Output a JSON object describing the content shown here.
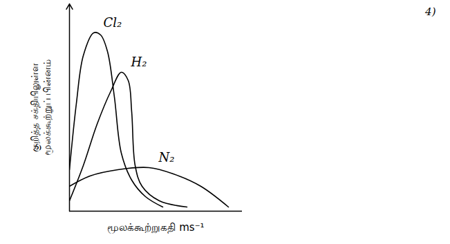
{
  "chart_data": {
    "type": "line",
    "xlabel": "மூலக்கூற்றுகதி ms⁻¹",
    "ylabel": "குறித்த சக்தியிலுள்ள\nமூலக்கூற்றுப் பின்னம்",
    "annotations": [
      "4)"
    ],
    "xlim": [
      0,
      100
    ],
    "ylim": [
      0,
      100
    ],
    "tick_labels": false,
    "series": [
      {
        "name": "Cl₂",
        "color": "#000000",
        "x": [
          0,
          4,
          8,
          14,
          18,
          22,
          26,
          30,
          36,
          44,
          54
        ],
        "values": [
          20,
          52,
          75,
          86,
          85,
          77,
          55,
          28,
          15,
          7,
          2
        ]
      },
      {
        "name": "H₂",
        "color": "#000000",
        "x": [
          0,
          8,
          16,
          24,
          30,
          34,
          36,
          38,
          42,
          52,
          68
        ],
        "values": [
          5,
          22,
          42,
          58,
          67,
          63,
          48,
          22,
          12,
          5,
          2
        ]
      },
      {
        "name": "N₂",
        "color": "#000000",
        "x": [
          0,
          12,
          28,
          46,
          60,
          76,
          92
        ],
        "values": [
          12,
          17,
          20,
          21,
          18,
          12,
          2
        ]
      }
    ]
  }
}
